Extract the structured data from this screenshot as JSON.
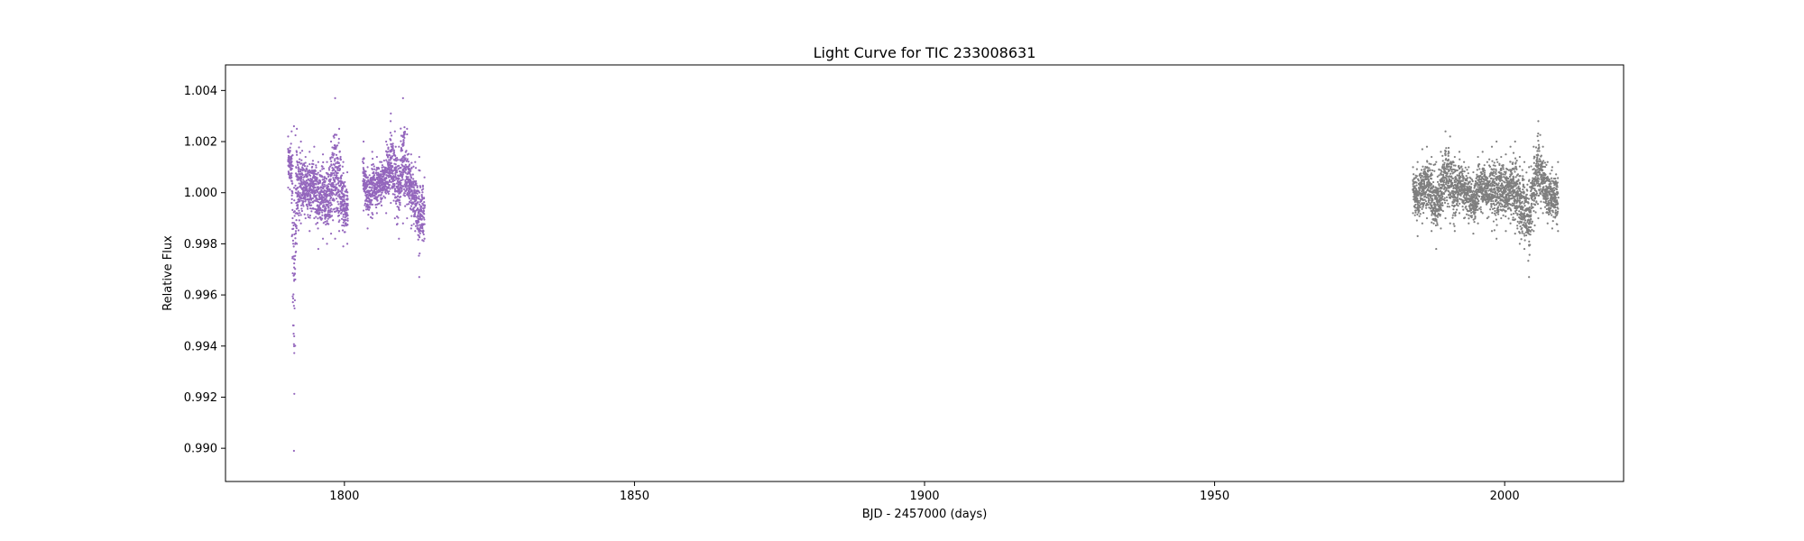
{
  "chart_data": {
    "type": "scatter",
    "title": "Light Curve for TIC 233008631",
    "xlabel": "BJD - 2457000 (days)",
    "ylabel": "Relative Flux",
    "xlim": [
      1779.5,
      2020.5
    ],
    "ylim": [
      0.9887,
      1.005
    ],
    "xticks": [
      1800,
      1850,
      1900,
      1950,
      2000
    ],
    "xtick_labels": [
      "1800",
      "1850",
      "1900",
      "1950",
      "2000"
    ],
    "yticks": [
      0.99,
      0.992,
      0.994,
      0.996,
      0.998,
      1.0,
      1.002,
      1.004
    ],
    "ytick_labels": [
      "0.990",
      "0.992",
      "0.994",
      "0.996",
      "0.998",
      "1.000",
      "1.002",
      "1.004"
    ],
    "grid": false,
    "series": [
      {
        "color": "#9467bd",
        "x_range": [
          1790.3,
          1813.8
        ],
        "gaps": [
          [
            1800.6,
            1803.2
          ]
        ],
        "envelope": [
          [
            1790.3,
            1.0002,
            1.0022
          ],
          [
            1790.9,
            0.9996,
            1.0024
          ],
          [
            1791.3,
            0.9899,
            1.0026
          ],
          [
            1791.8,
            0.998,
            1.0025
          ],
          [
            1792.5,
            0.9988,
            1.002
          ],
          [
            1793.3,
            0.999,
            1.0014
          ],
          [
            1794.0,
            0.9985,
            1.0016
          ],
          [
            1794.8,
            0.999,
            1.0018
          ],
          [
            1795.5,
            0.9978,
            1.0012
          ],
          [
            1796.3,
            0.9982,
            1.0015
          ],
          [
            1797.0,
            0.998,
            1.0012
          ],
          [
            1797.7,
            0.9984,
            1.002
          ],
          [
            1798.4,
            0.9982,
            1.0037
          ],
          [
            1799.1,
            0.9985,
            1.0025
          ],
          [
            1799.8,
            0.9979,
            1.0012
          ],
          [
            1800.5,
            0.998,
            1.0008
          ],
          [
            1803.3,
            0.9993,
            1.002
          ],
          [
            1804.0,
            0.9986,
            1.001
          ],
          [
            1804.8,
            0.999,
            1.0016
          ],
          [
            1805.6,
            0.9992,
            1.0014
          ],
          [
            1806.4,
            0.9995,
            1.0012
          ],
          [
            1807.2,
            0.9992,
            1.002
          ],
          [
            1808.0,
            0.9996,
            1.0031
          ],
          [
            1808.7,
            0.999,
            1.0024
          ],
          [
            1809.4,
            0.9982,
            1.0018
          ],
          [
            1810.1,
            0.9988,
            1.0037
          ],
          [
            1810.8,
            0.999,
            1.0025
          ],
          [
            1811.5,
            0.9986,
            1.0015
          ],
          [
            1812.2,
            0.9985,
            1.0012
          ],
          [
            1812.9,
            0.9967,
            1.0014
          ],
          [
            1813.8,
            0.9982,
            1.0006
          ]
        ]
      },
      {
        "color": "#7f7f7f",
        "x_range": [
          1984.2,
          2009.2
        ],
        "gaps": [],
        "envelope": [
          [
            1984.2,
            0.9992,
            1.001
          ],
          [
            1985.0,
            0.9983,
            1.0012
          ],
          [
            1985.8,
            0.9988,
            1.0017
          ],
          [
            1986.6,
            0.999,
            1.0018
          ],
          [
            1987.4,
            0.9985,
            1.0014
          ],
          [
            1988.2,
            0.9978,
            1.0012
          ],
          [
            1989.0,
            0.9986,
            1.0016
          ],
          [
            1989.8,
            0.999,
            1.0024
          ],
          [
            1990.6,
            0.9988,
            1.0022
          ],
          [
            1991.4,
            0.9985,
            1.0014
          ],
          [
            1992.2,
            0.9992,
            1.0016
          ],
          [
            1993.0,
            0.999,
            1.0012
          ],
          [
            1993.8,
            0.9988,
            1.001
          ],
          [
            1994.6,
            0.9984,
            1.0008
          ],
          [
            1995.4,
            0.9988,
            1.0014
          ],
          [
            1996.2,
            0.9992,
            1.0016
          ],
          [
            1997.0,
            0.999,
            1.0012
          ],
          [
            1997.8,
            0.9985,
            1.0018
          ],
          [
            1998.6,
            0.9982,
            1.002
          ],
          [
            1999.4,
            0.999,
            1.0014
          ],
          [
            2000.2,
            0.9985,
            1.0015
          ],
          [
            2001.0,
            0.9988,
            1.0018
          ],
          [
            2001.8,
            0.9984,
            1.002
          ],
          [
            2002.6,
            0.998,
            1.0014
          ],
          [
            2003.4,
            0.9978,
            1.0012
          ],
          [
            2004.2,
            0.9967,
            1.001
          ],
          [
            2005.0,
            0.9985,
            1.0018
          ],
          [
            2005.8,
            0.999,
            1.0028
          ],
          [
            2006.6,
            0.9992,
            1.0018
          ],
          [
            2007.4,
            0.9988,
            1.0012
          ],
          [
            2008.2,
            0.9986,
            1.001
          ],
          [
            2009.2,
            0.9985,
            1.0012
          ]
        ]
      }
    ]
  }
}
